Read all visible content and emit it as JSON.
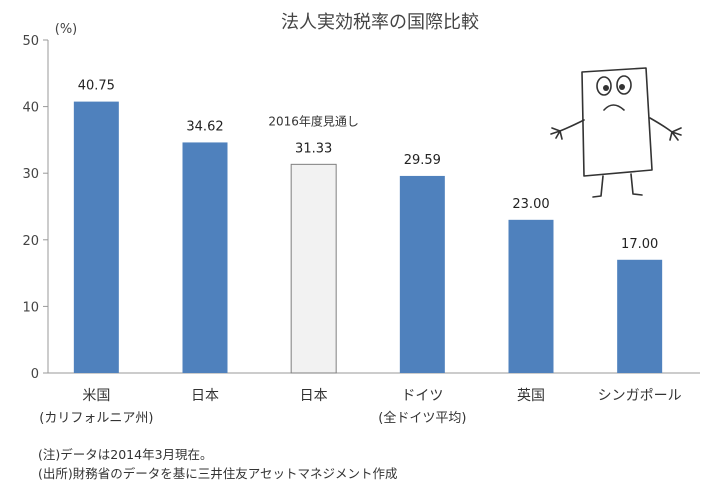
{
  "chart_data": {
    "type": "bar",
    "title": "法人実効税率の国際比較",
    "unit": "(%)",
    "categories": [
      "米国",
      "日本",
      "日本",
      "ドイツ",
      "英国",
      "シンガポール"
    ],
    "sublabels": [
      "(カリフォルニア州)",
      "",
      "",
      "(全ドイツ平均)",
      "",
      ""
    ],
    "values": [
      40.75,
      34.62,
      31.33,
      29.59,
      23.0,
      17.0
    ],
    "value_labels": [
      "40.75",
      "34.62",
      "31.33",
      "29.59",
      "23.00",
      "17.00"
    ],
    "highlight_index": 2,
    "annotation": "2016年度見通し",
    "ylim": [
      0,
      50
    ],
    "yticks": [
      0,
      10,
      20,
      30,
      40,
      50
    ],
    "colors": {
      "bar": "#4f81bd",
      "highlight_bar": "#f2f2f2",
      "highlight_border": "#7f7f7f",
      "axis": "#999999"
    }
  },
  "notes": [
    "(注)データは2014年3月現在。",
    "(出所)財務省のデータを基に三井住友アセットマネジメント作成"
  ]
}
